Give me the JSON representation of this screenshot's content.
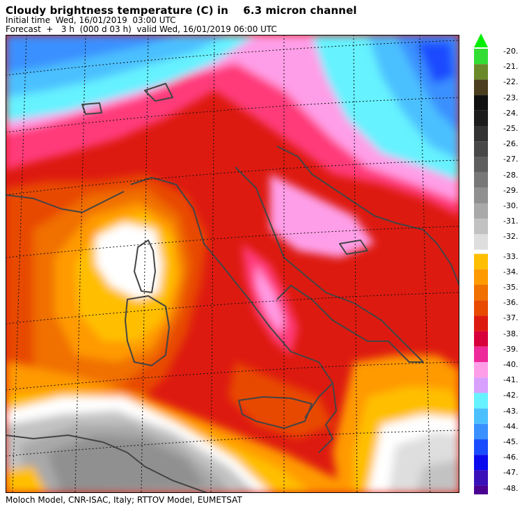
{
  "header": {
    "title": "Cloudy brightness temperature (C) in    6.3 micron channel",
    "initial_time": "Initial time  Wed, 16/01/2019  03:00 UTC",
    "forecast": "Forecast  +   3 h  (000 d 03 h)  valid Wed, 16/01/2019 06:00 UTC"
  },
  "footer": {
    "credit": "Moloch Model, CNR-ISAC, Italy; RTTOV Model, EUMETSAT"
  },
  "map": {
    "region": "Central Mediterranean / Italy",
    "variable": "Cloudy brightness temperature",
    "units": "C"
  },
  "legend": {
    "labels": [
      "-20.",
      "-21.",
      "-22.",
      "-23.",
      "-24.",
      "-25.",
      "-26.",
      "-27.",
      "-28.",
      "-29.",
      "-30.",
      "-31.",
      "-32.",
      "-33.",
      "-34.",
      "-35.",
      "-36.",
      "-37.",
      "-38.",
      "-39.",
      "-40.",
      "-41.",
      "-42.",
      "-43.",
      "-44.",
      "-45.",
      "-46.",
      "-47.",
      "-48."
    ],
    "colors": [
      "#33dd33",
      "#6a8a2a",
      "#4a3e1e",
      "#101010",
      "#1c1c1c",
      "#333333",
      "#474747",
      "#5e5e5e",
      "#777777",
      "#909090",
      "#a9a9a9",
      "#c2c2c2",
      "#dedede",
      "#ffbf00",
      "#ff9a00",
      "#f07000",
      "#e84a00",
      "#dd1a10",
      "#d8003a",
      "#ee2a9a",
      "#ff9ee8",
      "#d8a0ff",
      "#66f2ff",
      "#4cc0ff",
      "#3a90ff",
      "#1a4cff",
      "#0a0aee",
      "#3a10b8",
      "#4a0090"
    ],
    "top_arrow_color": "#00ee00",
    "bottom_arrow_color": "#3a0090"
  }
}
